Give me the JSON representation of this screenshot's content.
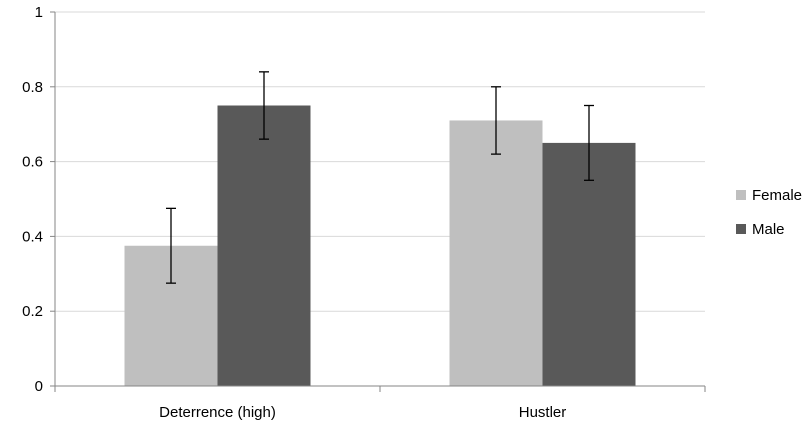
{
  "chart_data": {
    "type": "bar",
    "categories": [
      "Deterrence (high)",
      "Hustler"
    ],
    "series": [
      {
        "name": "Female",
        "values": [
          0.375,
          0.71
        ],
        "error_low": [
          0.275,
          0.62
        ],
        "error_high": [
          0.475,
          0.8
        ],
        "color": "#bfbfbf"
      },
      {
        "name": "Male",
        "values": [
          0.75,
          0.65
        ],
        "error_low": [
          0.66,
          0.55
        ],
        "error_high": [
          0.84,
          0.75
        ],
        "color": "#595959"
      }
    ],
    "ylim": [
      0,
      1
    ],
    "yticks": [
      0,
      0.2,
      0.4,
      0.6,
      0.8,
      1
    ],
    "ytick_labels": [
      "0",
      "0.2",
      "0.4",
      "0.6",
      "0.8",
      "1"
    ],
    "grid": true,
    "legend_position": "right",
    "title": "",
    "xlabel": "",
    "ylabel": ""
  }
}
